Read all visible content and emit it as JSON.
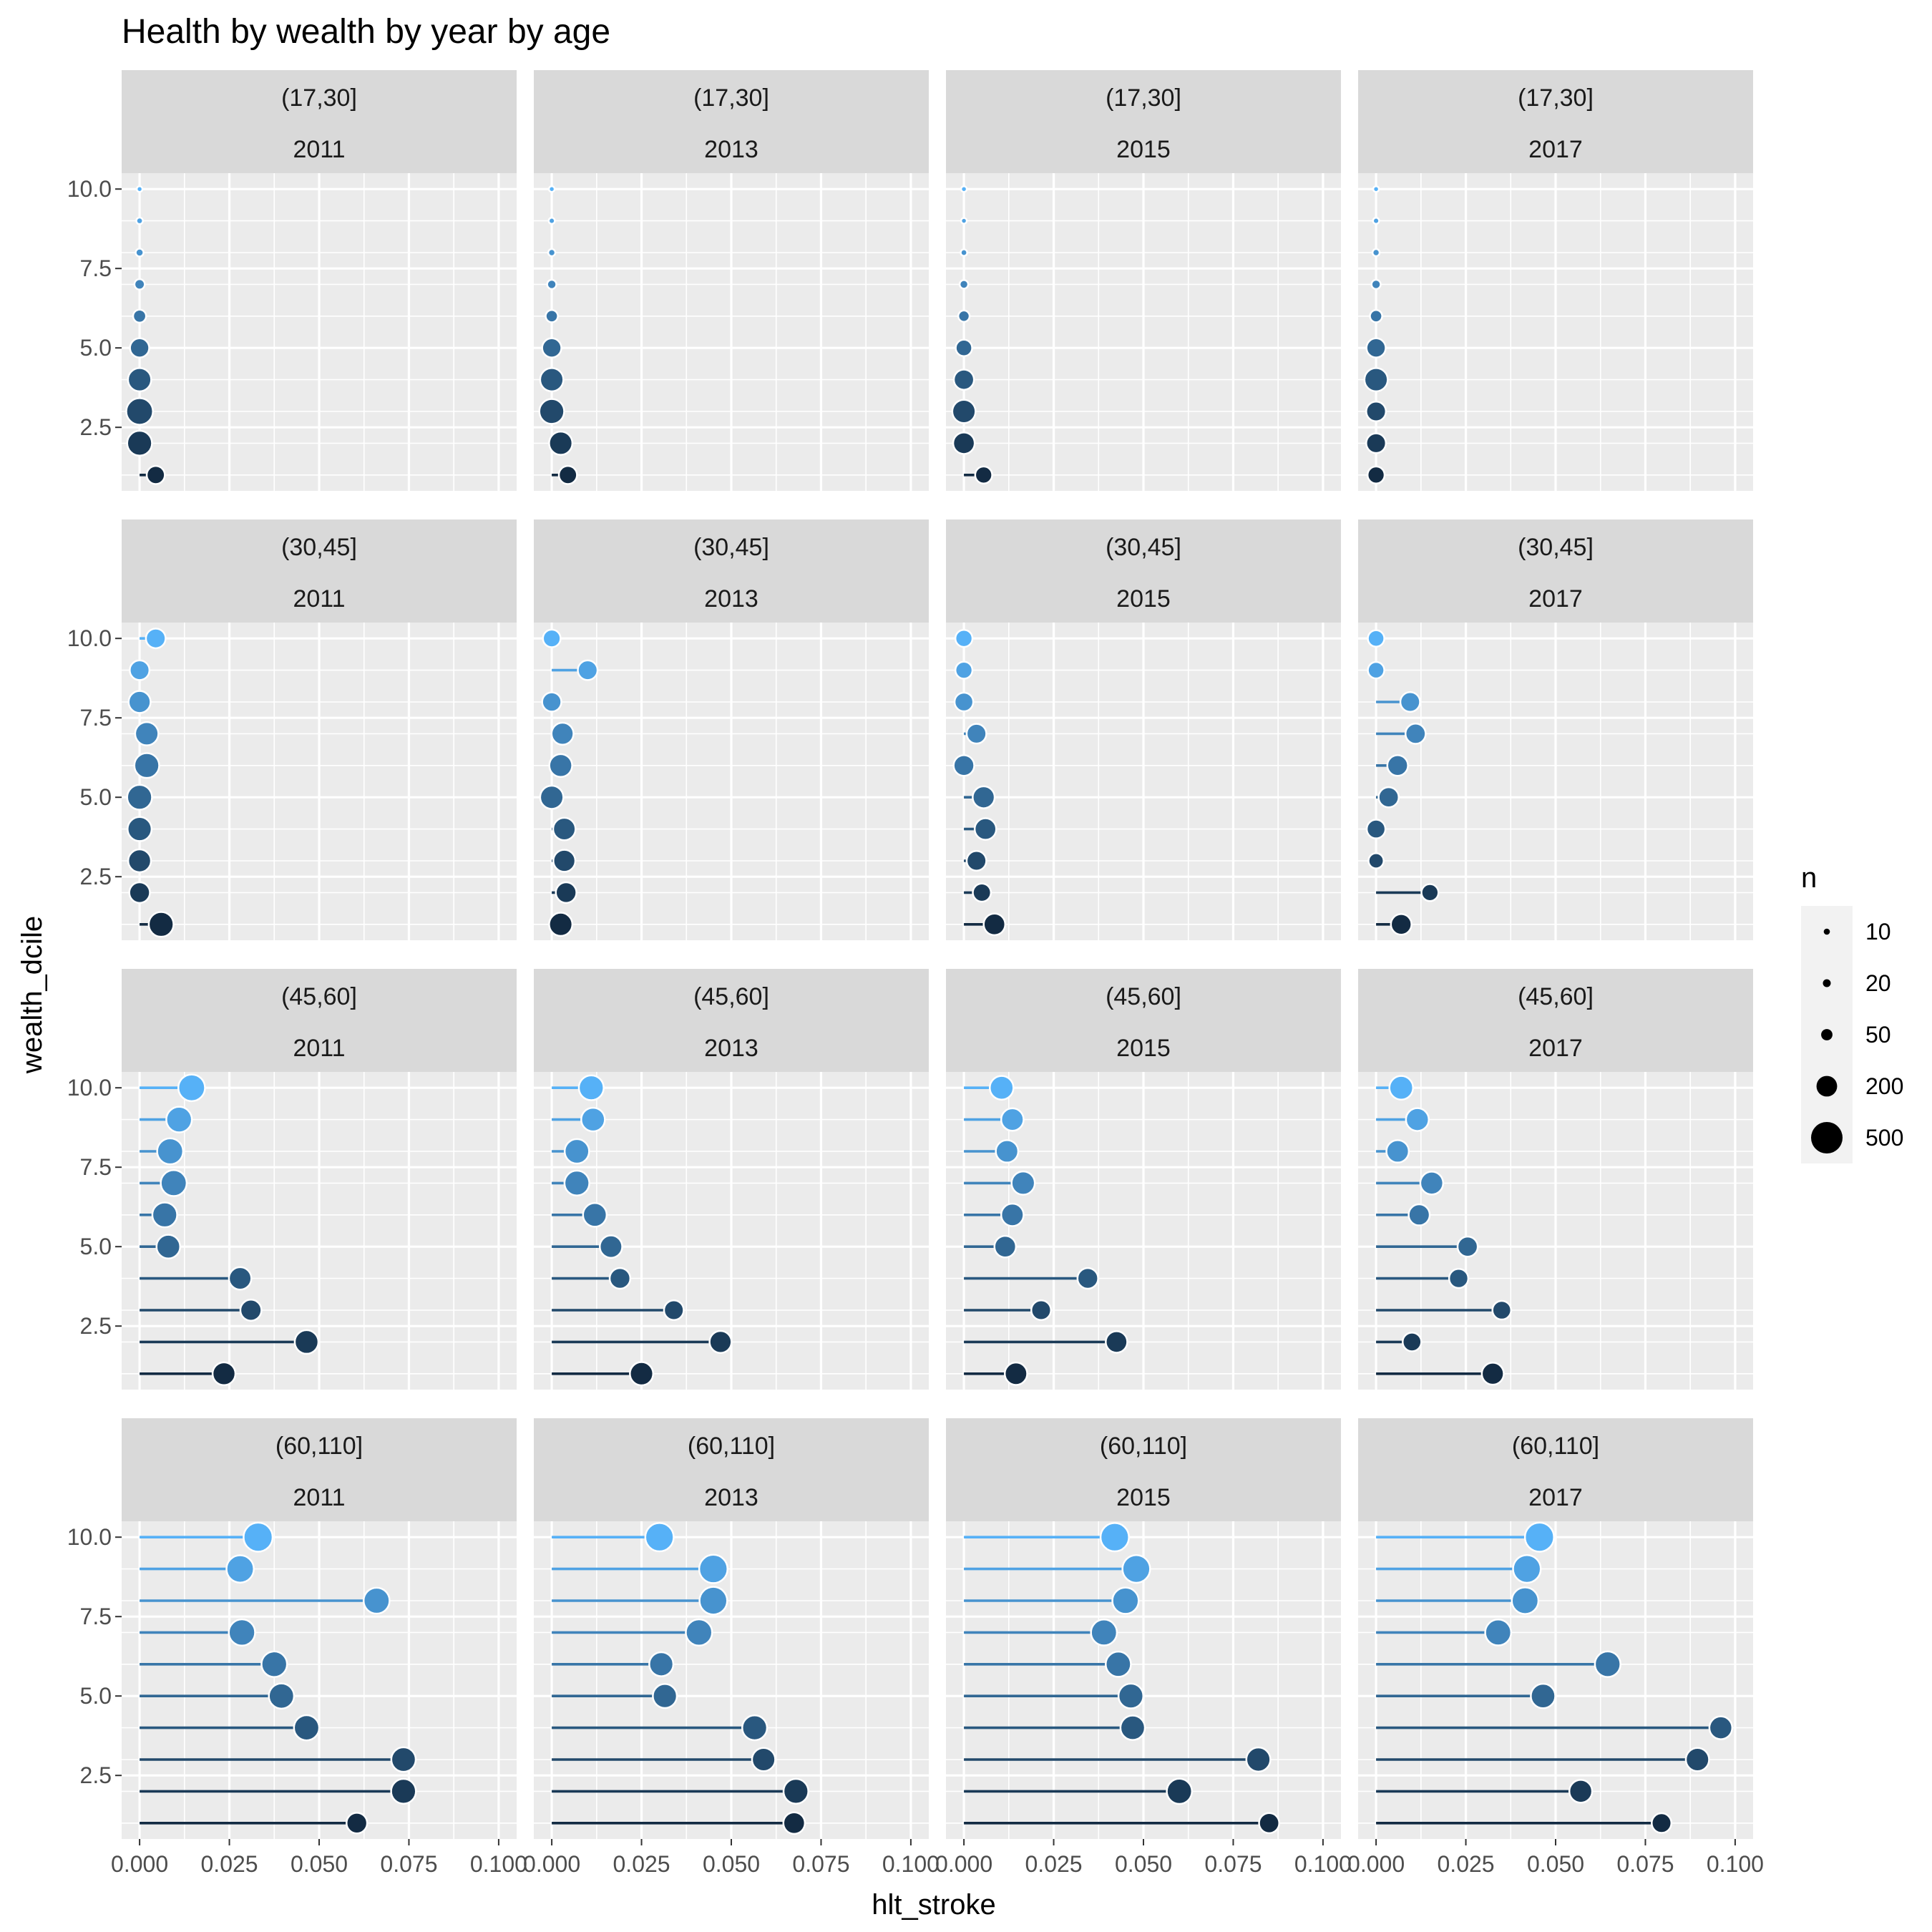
{
  "chart_data": {
    "type": "scatter",
    "subtype": "lollipop facet grid",
    "title": "Health by wealth by year by age",
    "xlabel": "hlt_stroke",
    "ylabel": "wealth_dcile",
    "xlim": [
      -0.005,
      0.105
    ],
    "ylim": [
      0.5,
      10.5
    ],
    "x_ticks": [
      0.0,
      0.025,
      0.05,
      0.075,
      0.1
    ],
    "x_tick_labels": [
      "0.000",
      "0.025",
      "0.050",
      "0.075",
      "0.100"
    ],
    "y_ticks": [
      2.5,
      5.0,
      7.5,
      10.0
    ],
    "y_tick_labels": [
      "2.5",
      "5.0",
      "7.5",
      "10.0"
    ],
    "legend": {
      "title": "n",
      "placement": "right",
      "items": [
        {
          "label": "10",
          "value": 10
        },
        {
          "label": "20",
          "value": 20
        },
        {
          "label": "50",
          "value": 50
        },
        {
          "label": "200",
          "value": 200
        },
        {
          "label": "500",
          "value": 500
        }
      ]
    },
    "color_scale": {
      "low": "#132B43",
      "high": "#56B1F7",
      "mapped_to": "wealth_dcile"
    },
    "facet_rows": [
      "(17,30]",
      "(30,45]",
      "(45,60]",
      "(60,110]"
    ],
    "facet_cols": [
      "2011",
      "2013",
      "2015",
      "2017"
    ],
    "panels": [
      {
        "age": "(17,30]",
        "year": "2011",
        "x": [
          0.0045,
          0.0,
          0.0,
          0.0,
          0.0,
          0.0,
          0.0,
          0.0,
          0.0,
          0.0
        ],
        "n": [
          150,
          300,
          350,
          260,
          170,
          70,
          40,
          20,
          12,
          8
        ]
      },
      {
        "age": "(17,30]",
        "year": "2013",
        "x": [
          0.0045,
          0.0025,
          0.0,
          0.0,
          0.0,
          0.0,
          0.0,
          0.0,
          0.0,
          0.0
        ],
        "n": [
          150,
          260,
          300,
          260,
          170,
          60,
          30,
          15,
          10,
          8
        ]
      },
      {
        "age": "(17,30]",
        "year": "2015",
        "x": [
          0.0055,
          0.0,
          0.0,
          0.0,
          0.0,
          0.0,
          0.0,
          0.0,
          0.0,
          0.0
        ],
        "n": [
          130,
          220,
          260,
          190,
          120,
          50,
          25,
          12,
          8,
          6
        ]
      },
      {
        "age": "(17,30]",
        "year": "2017",
        "x": [
          0.0,
          0.0,
          0.0,
          0.0,
          0.0,
          0.0,
          0.0,
          0.0,
          0.0,
          0.0
        ],
        "n": [
          130,
          180,
          180,
          260,
          170,
          60,
          30,
          15,
          10,
          8
        ]
      },
      {
        "age": "(30,45]",
        "year": "2011",
        "x": [
          0.006,
          0.0,
          0.0,
          0.0,
          0.0,
          0.002,
          0.002,
          0.0,
          0.0,
          0.0045
        ],
        "n": [
          300,
          200,
          250,
          280,
          300,
          300,
          260,
          230,
          180,
          180
        ]
      },
      {
        "age": "(30,45]",
        "year": "2013",
        "x": [
          0.0025,
          0.004,
          0.0035,
          0.0035,
          0.0,
          0.0025,
          0.003,
          0.0,
          0.01,
          0.0
        ],
        "n": [
          260,
          200,
          230,
          240,
          260,
          250,
          230,
          170,
          180,
          140
        ]
      },
      {
        "age": "(30,45]",
        "year": "2015",
        "x": [
          0.0085,
          0.005,
          0.0035,
          0.006,
          0.0055,
          0.0,
          0.0035,
          0.0,
          0.0,
          0.0
        ],
        "n": [
          220,
          150,
          180,
          220,
          230,
          200,
          180,
          160,
          130,
          130
        ]
      },
      {
        "age": "(30,45]",
        "year": "2017",
        "x": [
          0.007,
          0.015,
          0.0,
          0.0,
          0.0035,
          0.006,
          0.011,
          0.0095,
          0.0,
          0.0
        ],
        "n": [
          200,
          130,
          100,
          160,
          190,
          200,
          190,
          180,
          120,
          120
        ]
      },
      {
        "age": "(45,60]",
        "year": "2011",
        "x": [
          0.0235,
          0.0465,
          0.031,
          0.028,
          0.008,
          0.007,
          0.0095,
          0.0085,
          0.011,
          0.0145
        ],
        "n": [
          250,
          270,
          210,
          240,
          270,
          300,
          330,
          330,
          320,
          350
        ]
      },
      {
        "age": "(45,60]",
        "year": "2013",
        "x": [
          0.025,
          0.047,
          0.034,
          0.019,
          0.0165,
          0.012,
          0.007,
          0.007,
          0.0115,
          0.011
        ],
        "n": [
          260,
          230,
          180,
          200,
          240,
          270,
          300,
          290,
          270,
          300
        ]
      },
      {
        "age": "(45,60]",
        "year": "2015",
        "x": [
          0.0145,
          0.0425,
          0.0215,
          0.0345,
          0.0115,
          0.0135,
          0.0165,
          0.012,
          0.0135,
          0.0105
        ],
        "n": [
          240,
          220,
          180,
          200,
          220,
          240,
          260,
          240,
          240,
          270
        ]
      },
      {
        "age": "(45,60]",
        "year": "2017",
        "x": [
          0.0325,
          0.01,
          0.035,
          0.023,
          0.0255,
          0.012,
          0.0155,
          0.006,
          0.0115,
          0.007
        ],
        "n": [
          230,
          160,
          160,
          170,
          190,
          210,
          250,
          240,
          250,
          270
        ]
      },
      {
        "age": "(60,110]",
        "year": "2011",
        "x": [
          0.0605,
          0.0735,
          0.0735,
          0.0465,
          0.0395,
          0.0375,
          0.0285,
          0.066,
          0.028,
          0.033
        ],
        "n": [
          200,
          300,
          290,
          310,
          310,
          320,
          340,
          330,
          370,
          420
        ]
      },
      {
        "age": "(60,110]",
        "year": "2013",
        "x": [
          0.0675,
          0.068,
          0.059,
          0.0565,
          0.0315,
          0.0305,
          0.041,
          0.045,
          0.045,
          0.03
        ],
        "n": [
          220,
          300,
          260,
          300,
          280,
          280,
          340,
          380,
          400,
          400
        ]
      },
      {
        "age": "(60,110]",
        "year": "2015",
        "x": [
          0.085,
          0.06,
          0.082,
          0.047,
          0.0465,
          0.043,
          0.039,
          0.045,
          0.048,
          0.042
        ],
        "n": [
          190,
          310,
          280,
          290,
          300,
          310,
          330,
          340,
          380,
          400
        ]
      },
      {
        "age": "(60,110]",
        "year": "2017",
        "x": [
          0.0795,
          0.057,
          0.0895,
          0.096,
          0.0465,
          0.0645,
          0.034,
          0.0415,
          0.042,
          0.0455
        ],
        "n": [
          180,
          250,
          260,
          250,
          290,
          320,
          330,
          350,
          380,
          420
        ]
      }
    ]
  }
}
